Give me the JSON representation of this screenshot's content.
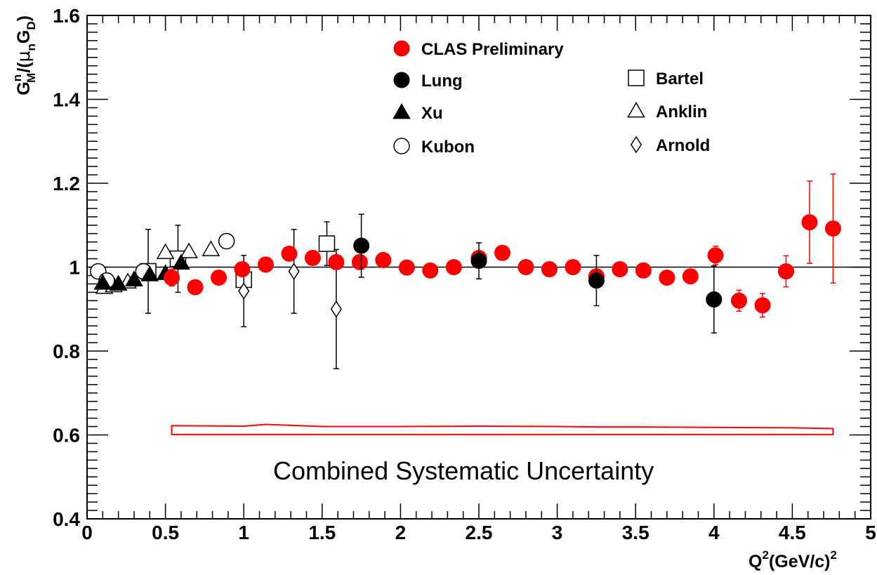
{
  "chart_data": {
    "type": "scatter",
    "xlabel": {
      "main": "Q",
      "sup": "2",
      "rest": "(GeV/c)",
      "sup2": "2"
    },
    "ylabel": {
      "g": "G",
      "gsup": "n",
      "gsub": "M",
      "mid": "/(",
      "mu": "μ",
      "musub": "n",
      "g2": "G",
      "g2sub": "D",
      "end": ")"
    },
    "xlim": [
      0,
      5
    ],
    "ylim": [
      0.4,
      1.6
    ],
    "x_ticks": [
      "0",
      "0.5",
      "1",
      "1.5",
      "2",
      "2.5",
      "3",
      "3.5",
      "4",
      "4.5",
      "5"
    ],
    "y_ticks": [
      "0.4",
      "0.6",
      "0.8",
      "1",
      "1.2",
      "1.4",
      "1.6"
    ],
    "reference_line_y": 1.0,
    "legend_placement": "top",
    "legend": [
      {
        "name": "CLAS Preliminary",
        "marker": "filled-circle",
        "color": "#ff0000"
      },
      {
        "name": "Lung",
        "marker": "filled-circle",
        "color": "#000000"
      },
      {
        "name": "Xu",
        "marker": "filled-triangle",
        "color": "#000000"
      },
      {
        "name": "Kubon",
        "marker": "open-circle",
        "color": "#000000"
      },
      {
        "name": "Bartel",
        "marker": "open-square",
        "color": "#000000"
      },
      {
        "name": "Anklin",
        "marker": "open-triangle",
        "color": "#000000"
      },
      {
        "name": "Arnold",
        "marker": "open-diamond",
        "color": "#000000"
      }
    ],
    "series": [
      {
        "name": "CLAS Preliminary",
        "marker": "filled-circle",
        "color": "#ff0000",
        "points": [
          {
            "x": 0.54,
            "y": 0.975,
            "err": 0.02
          },
          {
            "x": 0.69,
            "y": 0.952,
            "err": 0.0
          },
          {
            "x": 0.84,
            "y": 0.975,
            "err": 0.0
          },
          {
            "x": 0.99,
            "y": 0.995,
            "err": 0.0
          },
          {
            "x": 1.14,
            "y": 1.006,
            "err": 0.0
          },
          {
            "x": 1.29,
            "y": 1.032,
            "err": 0.0
          },
          {
            "x": 1.44,
            "y": 1.022,
            "err": 0.0
          },
          {
            "x": 1.59,
            "y": 1.012,
            "err": 0.0
          },
          {
            "x": 1.74,
            "y": 1.012,
            "err": 0.0
          },
          {
            "x": 1.89,
            "y": 1.017,
            "err": 0.0
          },
          {
            "x": 2.04,
            "y": 0.999,
            "err": 0.0
          },
          {
            "x": 2.19,
            "y": 0.992,
            "err": 0.0
          },
          {
            "x": 2.34,
            "y": 1.0,
            "err": 0.0
          },
          {
            "x": 2.5,
            "y": 1.022,
            "err": 0.0
          },
          {
            "x": 2.65,
            "y": 1.034,
            "err": 0.0
          },
          {
            "x": 2.8,
            "y": 1.0,
            "err": 0.0
          },
          {
            "x": 2.95,
            "y": 0.995,
            "err": 0.0
          },
          {
            "x": 3.1,
            "y": 1.0,
            "err": 0.0
          },
          {
            "x": 3.25,
            "y": 0.978,
            "err": 0.0
          },
          {
            "x": 3.4,
            "y": 0.995,
            "err": 0.0
          },
          {
            "x": 3.55,
            "y": 0.992,
            "err": 0.0
          },
          {
            "x": 3.7,
            "y": 0.975,
            "err": 0.015
          },
          {
            "x": 3.85,
            "y": 0.978,
            "err": 0.015
          },
          {
            "x": 4.01,
            "y": 1.028,
            "err": 0.022
          },
          {
            "x": 4.16,
            "y": 0.92,
            "err": 0.025
          },
          {
            "x": 4.31,
            "y": 0.909,
            "err": 0.028
          },
          {
            "x": 4.46,
            "y": 0.99,
            "err": 0.037
          },
          {
            "x": 4.61,
            "y": 1.107,
            "err": 0.098
          },
          {
            "x": 4.76,
            "y": 1.092,
            "err": 0.13
          }
        ]
      },
      {
        "name": "Lung",
        "marker": "filled-circle",
        "color": "#000000",
        "points": [
          {
            "x": 1.75,
            "y": 1.051,
            "err": 0.075
          },
          {
            "x": 2.5,
            "y": 1.015,
            "err": 0.043
          },
          {
            "x": 3.25,
            "y": 0.968,
            "err": 0.06
          },
          {
            "x": 4.0,
            "y": 0.923,
            "err": 0.08
          }
        ]
      },
      {
        "name": "Xu",
        "marker": "filled-triangle",
        "color": "#000000",
        "points": [
          {
            "x": 0.1,
            "y": 0.962,
            "err": 0.0
          },
          {
            "x": 0.2,
            "y": 0.96,
            "err": 0.0
          },
          {
            "x": 0.3,
            "y": 0.97,
            "err": 0.0
          },
          {
            "x": 0.4,
            "y": 0.982,
            "err": 0.0
          },
          {
            "x": 0.5,
            "y": 0.985,
            "err": 0.0
          },
          {
            "x": 0.6,
            "y": 1.01,
            "err": 0.0
          }
        ]
      },
      {
        "name": "Kubon",
        "marker": "open-circle",
        "color": "#000000",
        "points": [
          {
            "x": 0.071,
            "y": 0.99,
            "err": 0.0
          },
          {
            "x": 0.125,
            "y": 0.968,
            "err": 0.0
          },
          {
            "x": 0.36,
            "y": 0.99,
            "err": 0.0
          },
          {
            "x": 0.89,
            "y": 1.062,
            "err": 0.0
          }
        ]
      },
      {
        "name": "Bartel",
        "marker": "open-square",
        "color": "#000000",
        "points": [
          {
            "x": 0.39,
            "y": 0.99,
            "err": 0.1
          },
          {
            "x": 0.58,
            "y": 1.02,
            "err": 0.08
          },
          {
            "x": 1.0,
            "y": 0.97,
            "err": 0.0
          },
          {
            "x": 1.53,
            "y": 1.056,
            "err": 0.052
          }
        ]
      },
      {
        "name": "Anklin",
        "marker": "open-triangle",
        "color": "#000000",
        "points": [
          {
            "x": 0.11,
            "y": 0.952,
            "err": 0.0
          },
          {
            "x": 0.17,
            "y": 0.956,
            "err": 0.0
          },
          {
            "x": 0.26,
            "y": 0.965,
            "err": 0.0
          },
          {
            "x": 0.5,
            "y": 1.035,
            "err": 0.0
          },
          {
            "x": 0.65,
            "y": 1.037,
            "err": 0.0
          },
          {
            "x": 0.79,
            "y": 1.042,
            "err": 0.0
          }
        ]
      },
      {
        "name": "Arnold",
        "marker": "open-diamond",
        "color": "#000000",
        "points": [
          {
            "x": 1.0,
            "y": 0.943,
            "err": 0.085
          },
          {
            "x": 1.32,
            "y": 0.99,
            "err": 0.1
          },
          {
            "x": 1.59,
            "y": 0.9,
            "err": 0.142
          }
        ]
      }
    ],
    "systematic_band": {
      "color": "#ff0000",
      "x": [
        0.54,
        1.0,
        1.14,
        1.5,
        2.0,
        2.5,
        3.0,
        3.25,
        3.5,
        4.0,
        4.5,
        4.76
      ],
      "y_top": [
        0.622,
        0.621,
        0.625,
        0.62,
        0.62,
        0.621,
        0.62,
        0.619,
        0.619,
        0.618,
        0.617,
        0.615
      ],
      "y_bottom": 0.601
    },
    "annotation": "Combined Systematic Uncertainty"
  }
}
